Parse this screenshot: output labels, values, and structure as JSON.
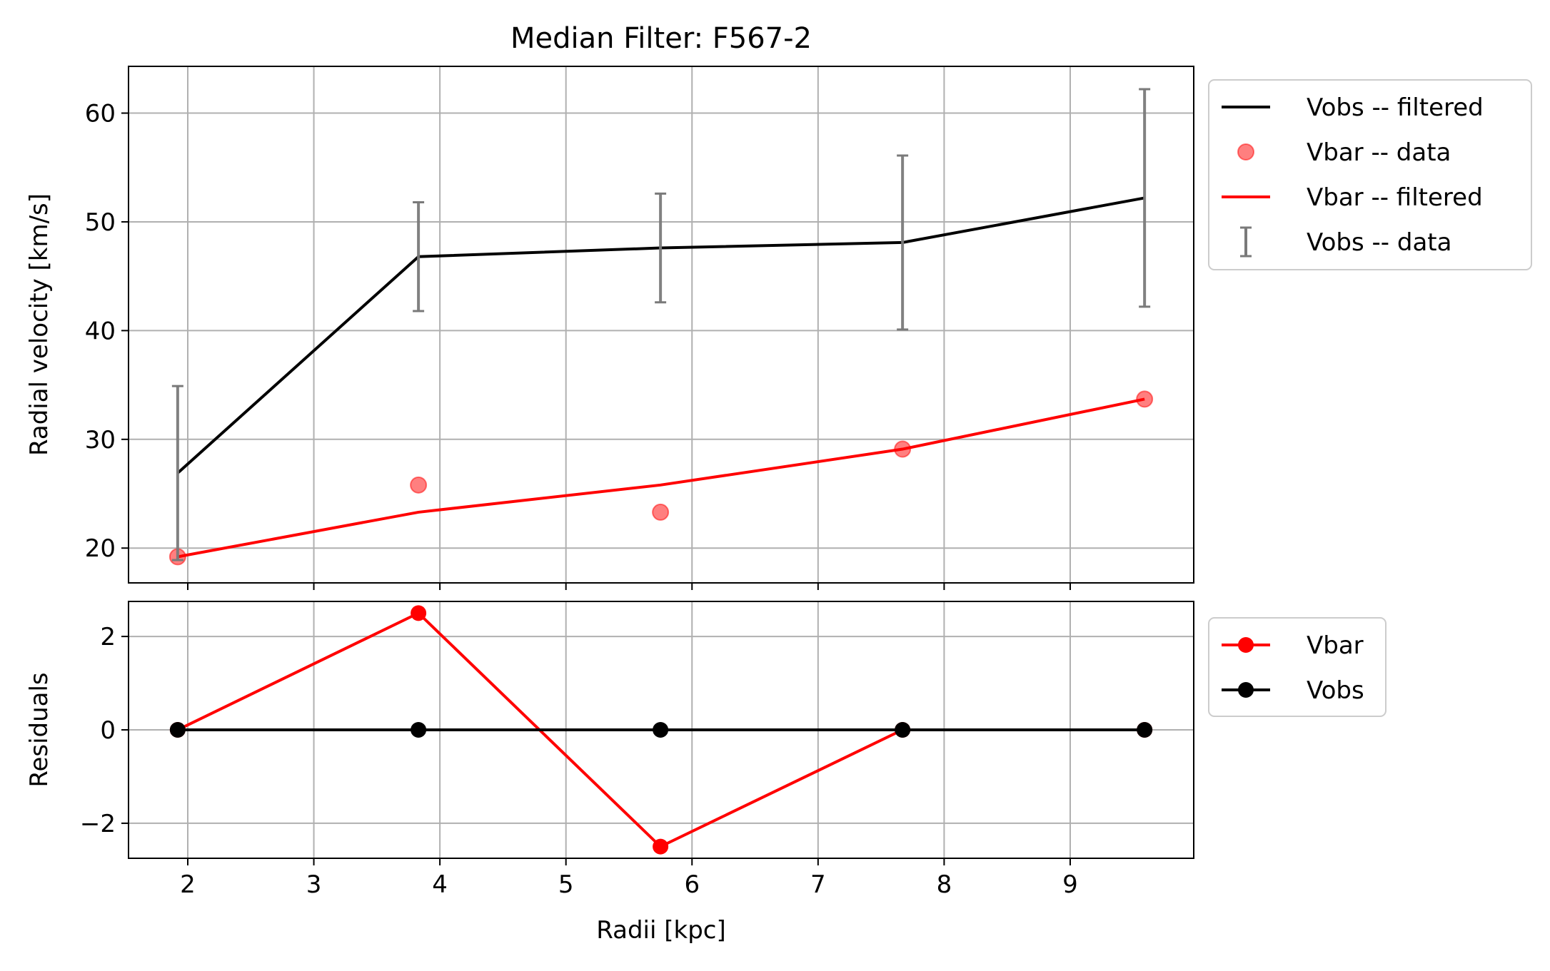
{
  "chart_data": [
    {
      "type": "line",
      "title": "Median Filter: F567-2",
      "xlabel": "",
      "ylabel": "Radial velocity [km/s]",
      "xlim": [
        1.53,
        9.98
      ],
      "ylim": [
        16.8,
        64.3
      ],
      "xticks": [
        2,
        3,
        4,
        5,
        6,
        7,
        8,
        9
      ],
      "yticks": [
        20,
        30,
        40,
        50,
        60
      ],
      "grid": true,
      "legend_position": "outside-upper-right",
      "x": [
        1.92,
        3.83,
        5.75,
        7.67,
        9.59
      ],
      "series": [
        {
          "name": "Vobs -- filtered",
          "kind": "line",
          "color": "#000000",
          "values": [
            26.9,
            46.8,
            47.6,
            48.1,
            52.2
          ]
        },
        {
          "name": "Vbar -- data",
          "kind": "scatter",
          "color": "#ff0000",
          "values": [
            19.2,
            25.8,
            23.3,
            29.1,
            33.7
          ]
        },
        {
          "name": "Vbar -- filtered",
          "kind": "line",
          "color": "#ff0000",
          "values": [
            19.2,
            23.3,
            25.8,
            29.1,
            33.7
          ]
        },
        {
          "name": "Vobs -- data",
          "kind": "errorbar",
          "color": "#7a7a7a",
          "values": [
            26.9,
            46.8,
            47.6,
            48.1,
            52.2
          ],
          "err": [
            8.0,
            5.0,
            5.0,
            8.0,
            10.0
          ]
        }
      ]
    },
    {
      "type": "line",
      "title": "",
      "xlabel": "Radii [kpc]",
      "ylabel": "Residuals",
      "xlim": [
        1.53,
        9.98
      ],
      "ylim": [
        -2.75,
        2.75
      ],
      "xticks": [
        2,
        3,
        4,
        5,
        6,
        7,
        8,
        9
      ],
      "yticks": [
        -2,
        0,
        2
      ],
      "ytick_labels": [
        "−2",
        "0",
        "2"
      ],
      "grid": true,
      "legend_position": "outside-upper-right",
      "x": [
        1.92,
        3.83,
        5.75,
        7.67,
        9.59
      ],
      "series": [
        {
          "name": "Vbar",
          "kind": "line-marker",
          "color": "#ff0000",
          "values": [
            0.0,
            2.5,
            -2.5,
            0.0,
            0.0
          ]
        },
        {
          "name": "Vobs",
          "kind": "line-marker",
          "color": "#000000",
          "values": [
            0.0,
            0.0,
            0.0,
            0.0,
            0.0
          ]
        }
      ]
    }
  ]
}
